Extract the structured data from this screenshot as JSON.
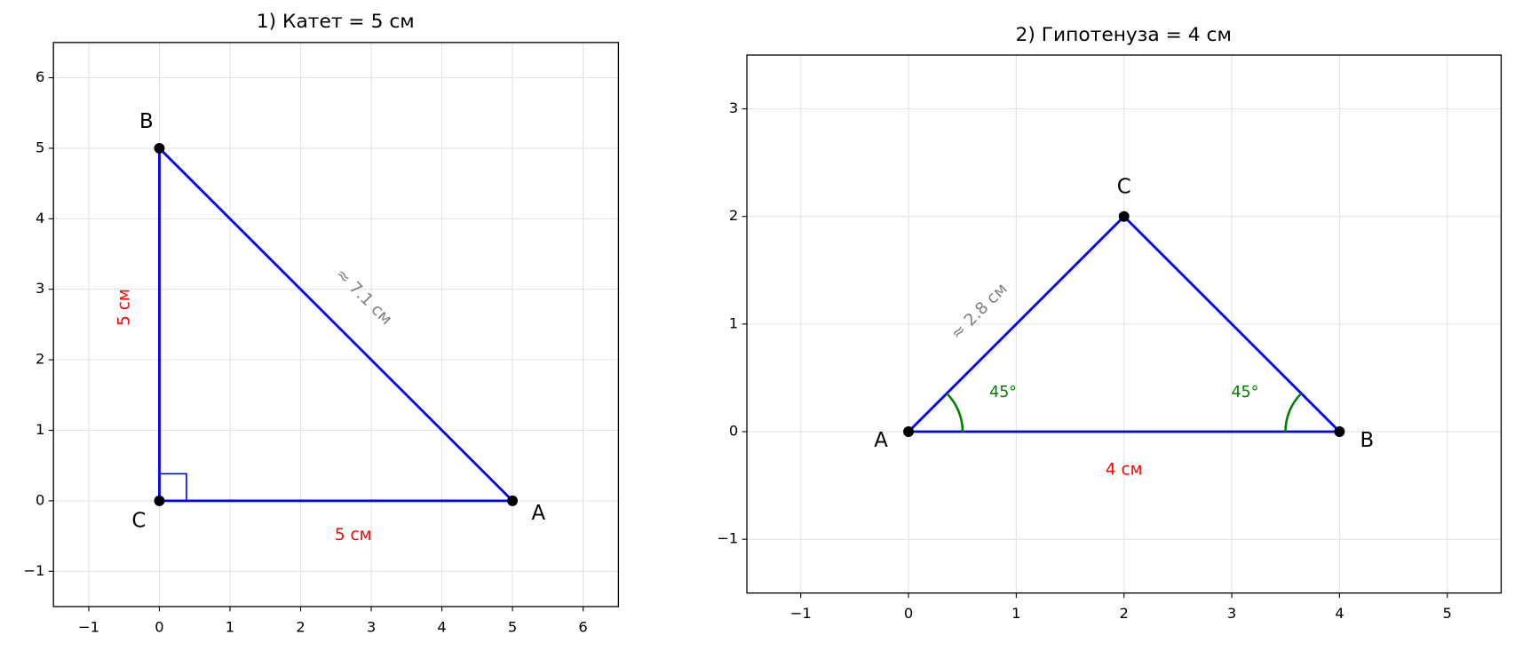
{
  "chart_data": [
    {
      "type": "triangle",
      "title": "1) Катет = 5 см",
      "vertices": [
        {
          "label": "C",
          "x": 0,
          "y": 0
        },
        {
          "label": "A",
          "x": 5,
          "y": 0
        },
        {
          "label": "B",
          "x": 0,
          "y": 5
        }
      ],
      "side_labels": [
        "5 см",
        "≈ 7.1 см",
        "5 см"
      ],
      "side_label_colors": [
        "red",
        "gray",
        "red"
      ],
      "color": "#0000ff",
      "xlim": [
        -1.5,
        6.5
      ],
      "ylim": [
        -1.5,
        6.5
      ],
      "xticks": [
        {
          "value": -1,
          "label": "−1"
        },
        0,
        1,
        2,
        3,
        4,
        5,
        6
      ],
      "yticks": [
        {
          "value": -1,
          "label": "−1"
        },
        0,
        1,
        2,
        3,
        4,
        5,
        6
      ],
      "grid": true
    },
    {
      "type": "triangle",
      "title": "2) Гипотенуза = 4 см",
      "vertices": [
        {
          "label": "A",
          "x": 0,
          "y": 0
        },
        {
          "label": "B",
          "x": 4,
          "y": 0
        },
        {
          "label": "C",
          "x": 2,
          "y": 2
        }
      ],
      "side_labels": [
        "4 см",
        null,
        "≈ 2.8 см"
      ],
      "side_label_colors": [
        "red",
        null,
        "gray"
      ],
      "angle_labels": [
        "45°",
        "45°",
        null
      ],
      "angle_color": "green",
      "color": "#0000ff",
      "xlim": [
        -1.5,
        5.5
      ],
      "ylim": [
        -1.5,
        3.5
      ],
      "xticks": [
        {
          "value": -1,
          "label": "−1"
        },
        0,
        1,
        2,
        3,
        4,
        5
      ],
      "yticks": [
        {
          "value": -1,
          "label": "−1"
        },
        0,
        1,
        2,
        3
      ],
      "grid": true
    }
  ]
}
